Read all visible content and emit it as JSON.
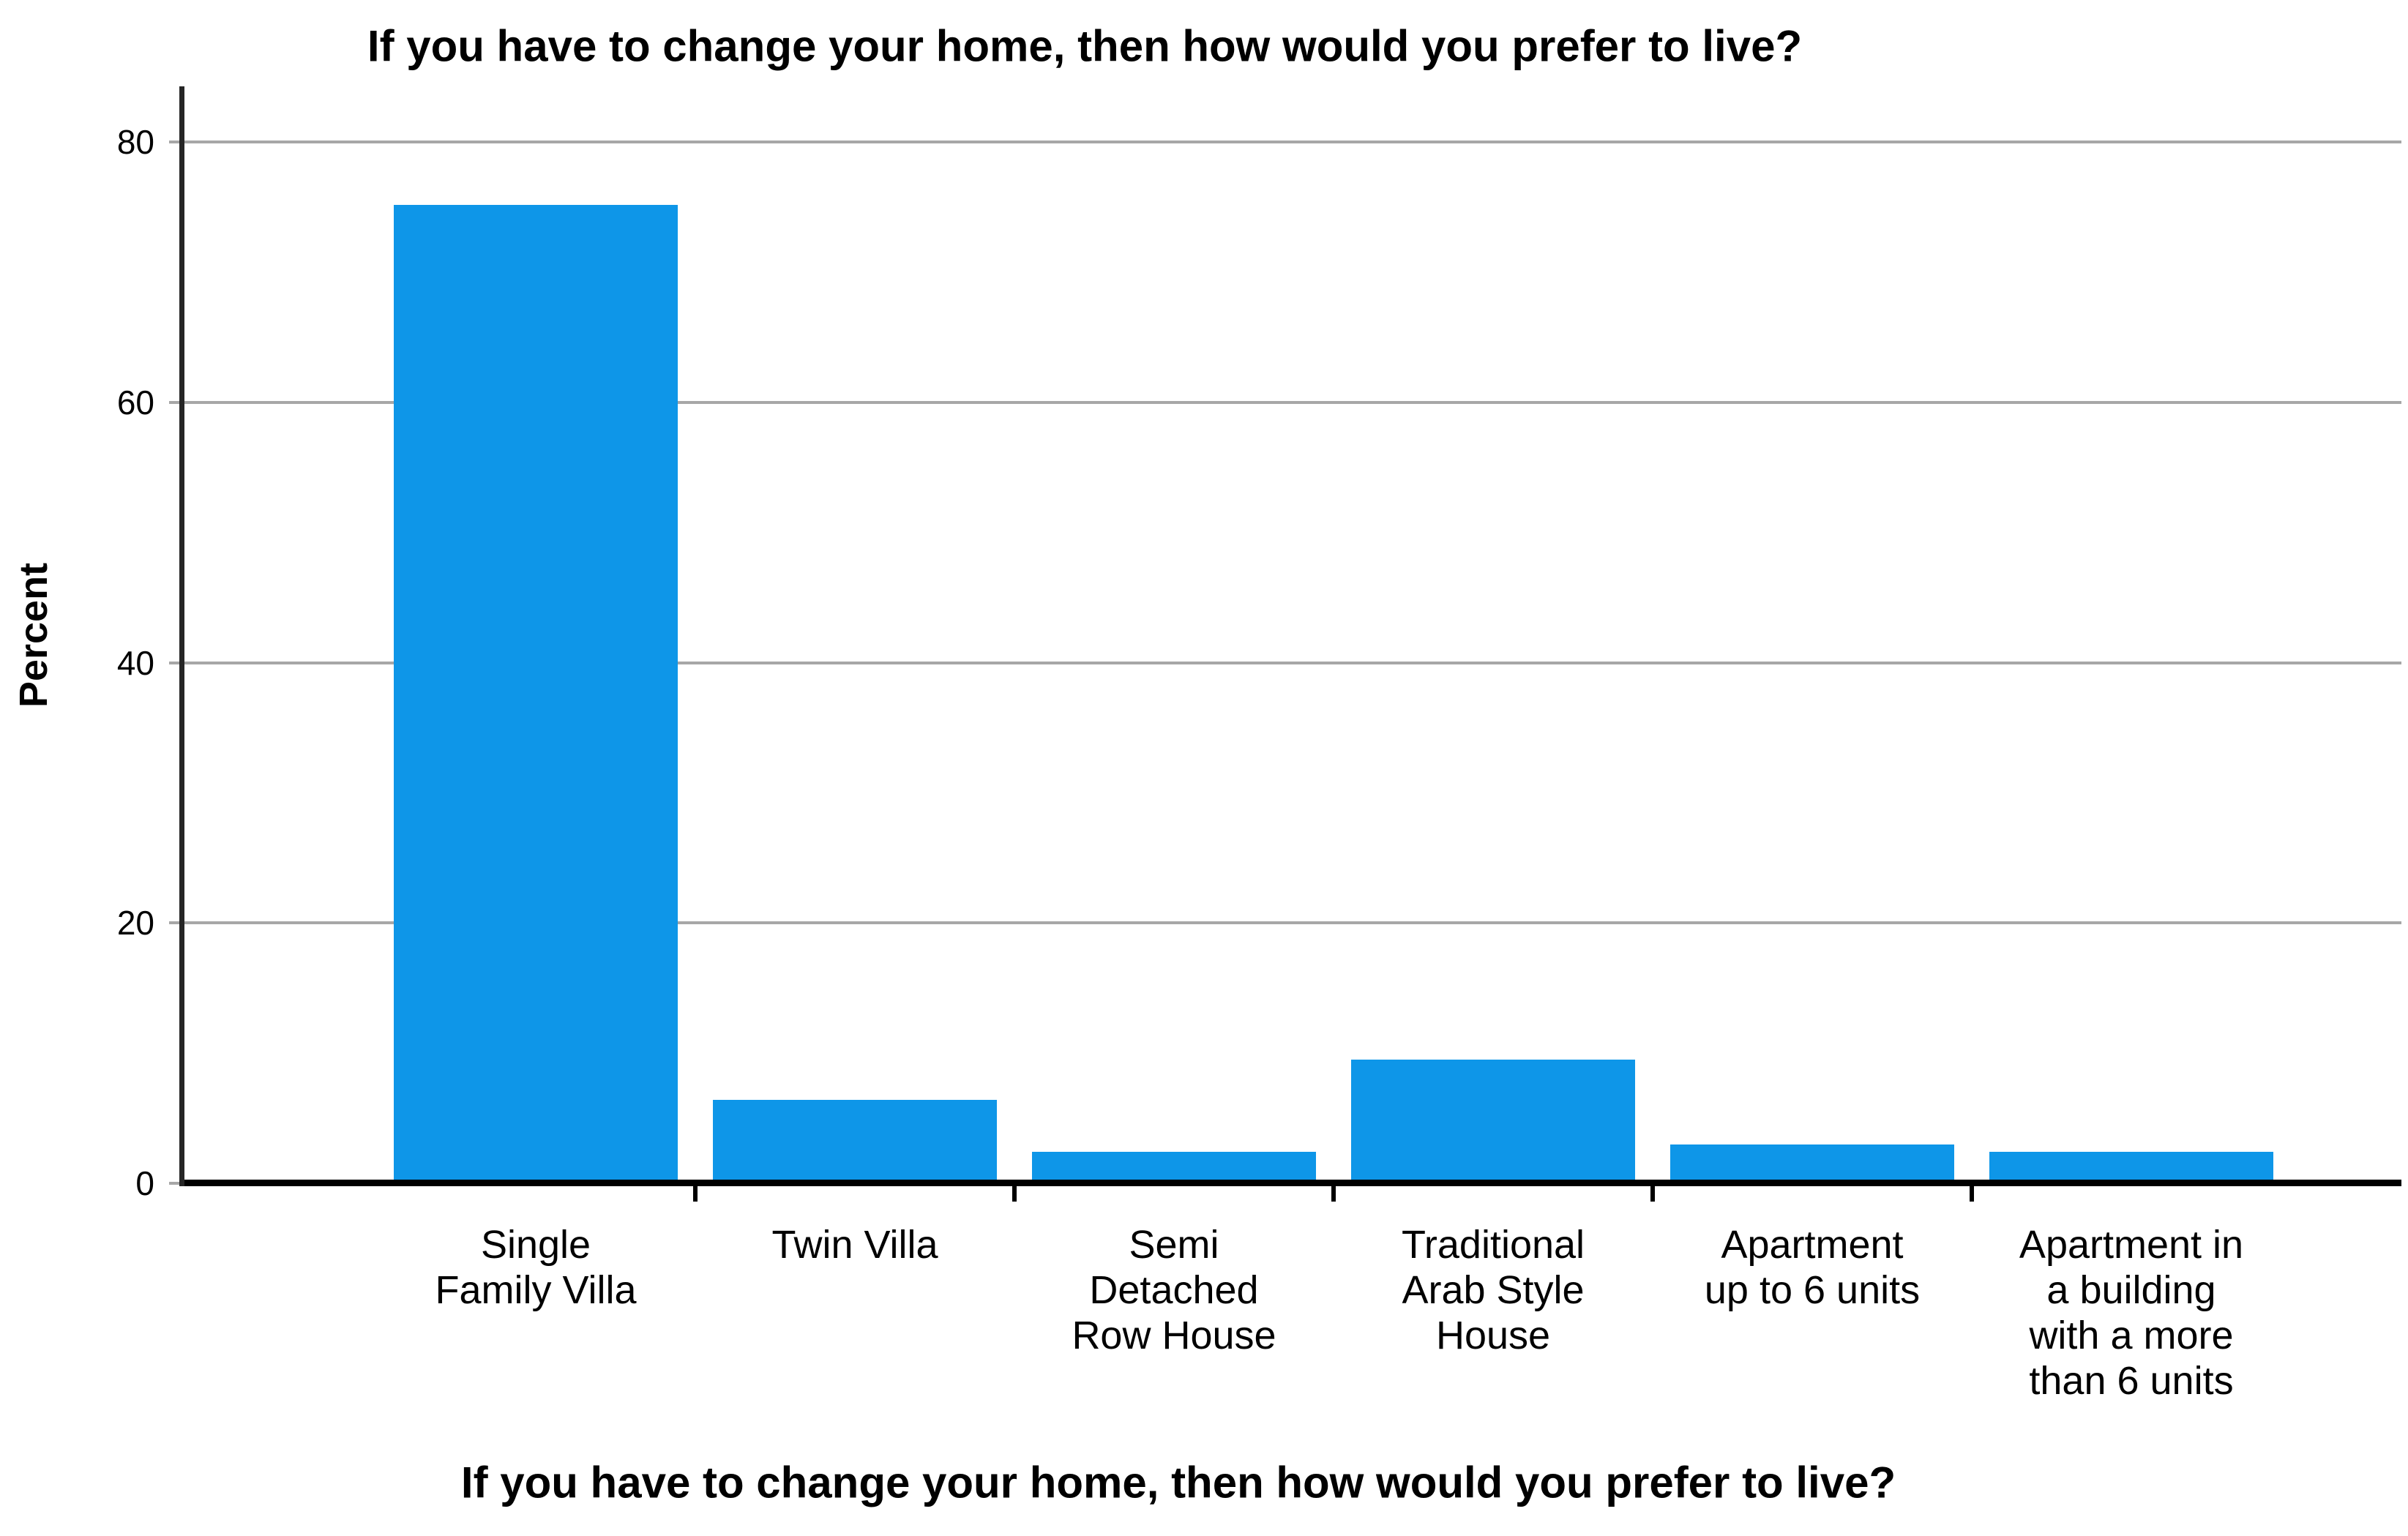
{
  "chart_data": {
    "type": "bar",
    "title": "If you have to change your home, then how would you prefer to live?",
    "xlabel": "If you have to change your home, then how would you prefer to live?",
    "ylabel": "Percent",
    "categories": [
      "Single Family Villa",
      "Twin Villa",
      "Semi Detached Row House",
      "Traditional Arab Style House",
      "Apartment up to 6 units",
      "Apartment in a building with a more than 6 units"
    ],
    "category_lines": [
      [
        "Single",
        "Family Villa"
      ],
      [
        "Twin Villa"
      ],
      [
        "Semi",
        "Detached",
        "Row House"
      ],
      [
        "Traditional",
        "Arab Style",
        "House"
      ],
      [
        "Apartment",
        "up to 6 units"
      ],
      [
        "Apartment in",
        "a building",
        "with a more",
        "than 6 units"
      ]
    ],
    "values": [
      75.2,
      6.4,
      2.4,
      9.5,
      3.0,
      2.4
    ],
    "yticks": [
      0,
      20,
      40,
      60,
      80
    ],
    "ylim": [
      0,
      84.3
    ],
    "grid": "horizontal-only",
    "legend": "none",
    "colors": {
      "bar": "#0E96E8",
      "gridline": "#A7A7A7",
      "y_axis": "#262626",
      "baseline": "#000000",
      "text": "#000000",
      "background": "#FFFFFF"
    }
  }
}
